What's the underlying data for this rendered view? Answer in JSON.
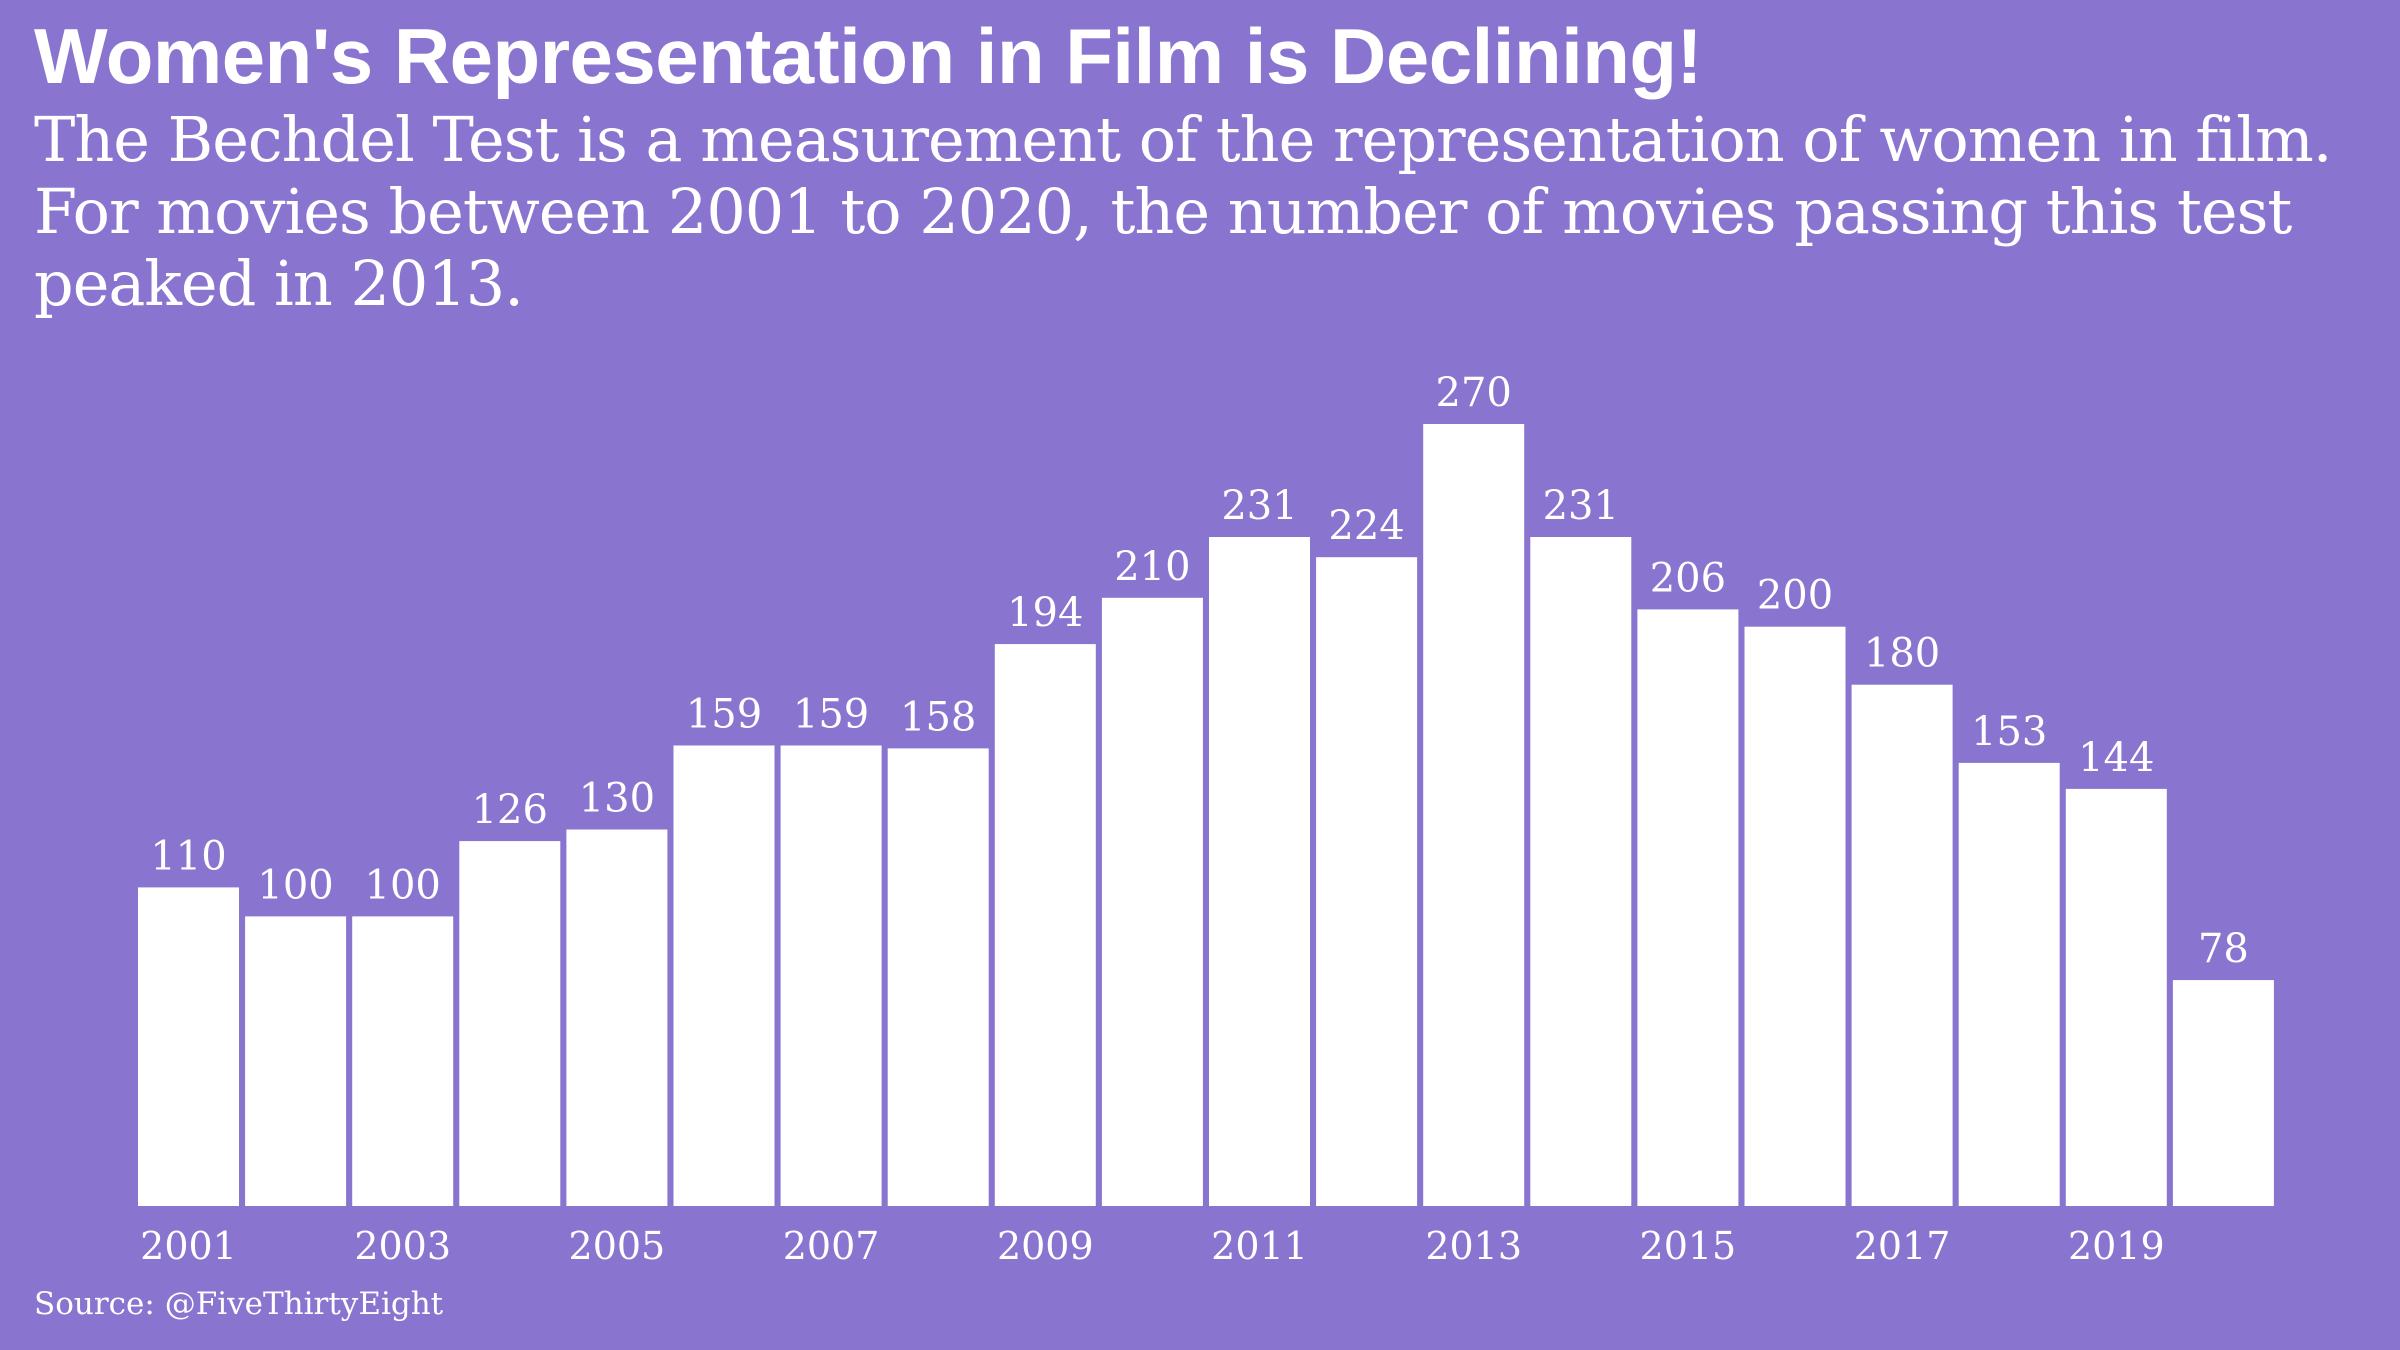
{
  "header": {
    "title": "Women's Representation in Film is Declining!",
    "subtitle": "The Bechdel Test is a measurement of the representation of women in film. For movies between 2001 to 2020, the number of movies passing this test peaked in 2013."
  },
  "footer": {
    "source": "Source: @FiveThirtyEight"
  },
  "colors": {
    "background": "#8974d0",
    "bar": "#ffffff",
    "text": "#ffffff"
  },
  "chart_data": {
    "type": "bar",
    "title": "",
    "xlabel": "",
    "ylabel": "",
    "categories": [
      "2001",
      "2002",
      "2003",
      "2004",
      "2005",
      "2006",
      "2007",
      "2008",
      "2009",
      "2010",
      "2011",
      "2012",
      "2013",
      "2014",
      "2015",
      "2016",
      "2017",
      "2018",
      "2019",
      "2020"
    ],
    "values": [
      110,
      100,
      100,
      126,
      130,
      159,
      159,
      158,
      194,
      210,
      231,
      224,
      270,
      231,
      206,
      200,
      180,
      153,
      144,
      78
    ],
    "tick_labels": [
      "2001",
      "2003",
      "2005",
      "2007",
      "2009",
      "2011",
      "2013",
      "2015",
      "2017",
      "2019"
    ],
    "ylim": [
      0,
      270
    ],
    "grid": false,
    "legend": "none",
    "data_labels": true
  }
}
